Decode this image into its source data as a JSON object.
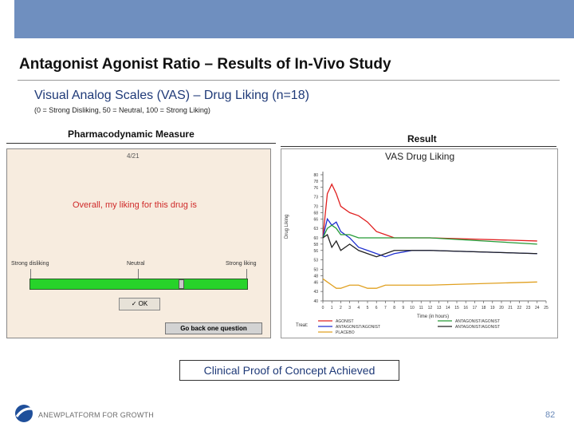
{
  "slide": {
    "title": "Antagonist Agonist Ratio – Results of In-Vivo Study",
    "subtitle": "Visual Analog Scales (VAS) – Drug Liking (n=18)",
    "scale_note": "(0 = Strong Disliking, 50 = Neutral, 100 = Strong Liking)",
    "left_header": "Pharmacodynamic Measure",
    "right_header": "Result",
    "conclusion": "Clinical Proof of Concept Achieved",
    "brand": "ANEWPLATFORM FOR GROWTH",
    "page_number": "82",
    "topbar_color": "#6f8fbf"
  },
  "questionnaire": {
    "page": "4/21",
    "question": "Overall, my liking for this drug is",
    "label_left": "Strong disliking",
    "label_mid": "Neutral",
    "label_right": "Strong liking",
    "slider_value": 0.7,
    "ok_label": "✓ OK",
    "back_label": "Go back one question"
  },
  "chart_data": {
    "type": "line",
    "title": "VAS Drug Liking",
    "xlabel": "Time (in hours)",
    "ylabel": "Drug Liking",
    "x": [
      0,
      0.5,
      1,
      1.5,
      2,
      3,
      4,
      5,
      6,
      7,
      8,
      10,
      12,
      24
    ],
    "xticks": [
      "0",
      "1",
      "2",
      "3",
      "4",
      "5",
      "6",
      "7",
      "8",
      "9",
      "10",
      "11",
      "12",
      "13",
      "14",
      "15",
      "16",
      "17",
      "18",
      "19",
      "20",
      "21",
      "22",
      "23",
      "24",
      "25"
    ],
    "yticks": [
      "40",
      "43",
      "46",
      "48",
      "50",
      "53",
      "56",
      "58",
      "60",
      "63",
      "66",
      "68",
      "70",
      "73",
      "76",
      "78",
      "80"
    ],
    "ylim": [
      40,
      81
    ],
    "xlim": [
      0,
      25
    ],
    "legend_title": "Treat:",
    "series": [
      {
        "name": "AGONIST",
        "color": "#e02020",
        "values": [
          60,
          74,
          77,
          74,
          70,
          68,
          67,
          65,
          62,
          61,
          60,
          60,
          60,
          59
        ]
      },
      {
        "name": "ANTAGONIST/AGONIST",
        "color": "#1f2fd0",
        "values": [
          60,
          66,
          64,
          65,
          62,
          60,
          57,
          56,
          55,
          54,
          55,
          56,
          56,
          55
        ]
      },
      {
        "name": "ANTAGONIST/AGONIST",
        "color": "#249a35",
        "values": [
          60,
          63,
          64,
          63,
          61,
          61,
          60,
          60,
          60,
          60,
          60,
          60,
          60,
          58
        ]
      },
      {
        "name": "ANTAGONIST/AGONIST",
        "color": "#202020",
        "values": [
          60,
          61,
          57,
          59,
          56,
          58,
          56,
          55,
          54,
          55,
          56,
          56,
          56,
          55
        ]
      },
      {
        "name": "PLACEBO",
        "color": "#e0a020",
        "values": [
          47,
          46,
          45,
          44,
          44,
          45,
          45,
          44,
          44,
          45,
          45,
          45,
          45,
          46
        ]
      }
    ]
  }
}
